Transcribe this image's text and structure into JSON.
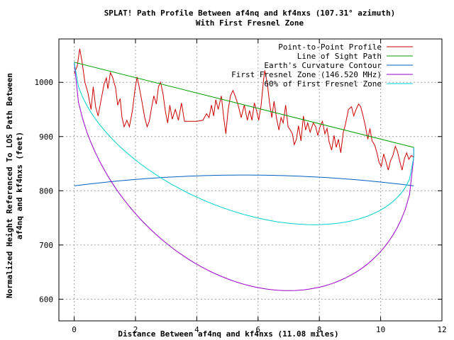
{
  "chart_data": {
    "type": "line",
    "title": "SPLAT! Path Profile Between af4nq and kf4nxs (107.31° azimuth)",
    "subtitle": "With First Fresnel Zone",
    "xlabel": "Distance Between af4nq and kf4nxs (11.08 miles)",
    "ylabel_line1": "Normalized Height Referenced To LOS Path Between",
    "ylabel_line2": "af4nq and kf4nxs (feet)",
    "xlim": [
      -0.5,
      12
    ],
    "ylim": [
      560,
      1080
    ],
    "xticks": [
      0,
      2,
      4,
      6,
      8,
      10,
      12
    ],
    "yticks": [
      600,
      700,
      800,
      900,
      1000
    ],
    "grid": true,
    "legend_position": "top-right",
    "series": [
      {
        "name": "Point-to-Point Profile",
        "color": "#cc0000",
        "points": [
          [
            0.0,
            1016
          ],
          [
            0.1,
            1030
          ],
          [
            0.18,
            1062
          ],
          [
            0.25,
            1040
          ],
          [
            0.35,
            1000
          ],
          [
            0.45,
            980
          ],
          [
            0.55,
            950
          ],
          [
            0.62,
            992
          ],
          [
            0.7,
            955
          ],
          [
            0.78,
            938
          ],
          [
            0.88,
            968
          ],
          [
            0.98,
            998
          ],
          [
            1.05,
            1008
          ],
          [
            1.1,
            988
          ],
          [
            1.18,
            1018
          ],
          [
            1.25,
            1010
          ],
          [
            1.35,
            990
          ],
          [
            1.42,
            958
          ],
          [
            1.5,
            970
          ],
          [
            1.56,
            935
          ],
          [
            1.63,
            918
          ],
          [
            1.72,
            930
          ],
          [
            1.8,
            918
          ],
          [
            1.9,
            948
          ],
          [
            1.98,
            985
          ],
          [
            2.05,
            1010
          ],
          [
            2.12,
            992
          ],
          [
            2.2,
            968
          ],
          [
            2.3,
            935
          ],
          [
            2.38,
            918
          ],
          [
            2.45,
            928
          ],
          [
            2.52,
            952
          ],
          [
            2.6,
            975
          ],
          [
            2.68,
            960
          ],
          [
            2.75,
            992
          ],
          [
            2.82,
            1000
          ],
          [
            2.9,
            978
          ],
          [
            2.98,
            945
          ],
          [
            3.05,
            925
          ],
          [
            3.12,
            958
          ],
          [
            3.2,
            932
          ],
          [
            3.3,
            950
          ],
          [
            3.4,
            930
          ],
          [
            3.5,
            962
          ],
          [
            3.6,
            928
          ],
          [
            3.8,
            928
          ],
          [
            4.0,
            928
          ],
          [
            4.2,
            930
          ],
          [
            4.32,
            942
          ],
          [
            4.4,
            935
          ],
          [
            4.48,
            958
          ],
          [
            4.55,
            938
          ],
          [
            4.62,
            968
          ],
          [
            4.7,
            950
          ],
          [
            4.8,
            975
          ],
          [
            4.88,
            935
          ],
          [
            4.95,
            905
          ],
          [
            5.02,
            948
          ],
          [
            5.1,
            975
          ],
          [
            5.18,
            985
          ],
          [
            5.25,
            975
          ],
          [
            5.35,
            958
          ],
          [
            5.45,
            935
          ],
          [
            5.55,
            958
          ],
          [
            5.65,
            930
          ],
          [
            5.72,
            948
          ],
          [
            5.8,
            930
          ],
          [
            5.88,
            962
          ],
          [
            5.95,
            948
          ],
          [
            6.02,
            930
          ],
          [
            6.1,
            958
          ],
          [
            6.18,
            1005
          ],
          [
            6.22,
            1022
          ],
          [
            6.3,
            998
          ],
          [
            6.38,
            960
          ],
          [
            6.45,
            935
          ],
          [
            6.52,
            965
          ],
          [
            6.6,
            935
          ],
          [
            6.68,
            912
          ],
          [
            6.75,
            935
          ],
          [
            6.82,
            925
          ],
          [
            6.9,
            958
          ],
          [
            6.98,
            918
          ],
          [
            7.05,
            912
          ],
          [
            7.12,
            905
          ],
          [
            7.18,
            885
          ],
          [
            7.25,
            895
          ],
          [
            7.32,
            920
          ],
          [
            7.4,
            892
          ],
          [
            7.48,
            938
          ],
          [
            7.55,
            912
          ],
          [
            7.62,
            925
          ],
          [
            7.7,
            908
          ],
          [
            7.8,
            925
          ],
          [
            7.88,
            918
          ],
          [
            7.95,
            902
          ],
          [
            8.02,
            918
          ],
          [
            8.1,
            928
          ],
          [
            8.18,
            905
          ],
          [
            8.25,
            915
          ],
          [
            8.32,
            890
          ],
          [
            8.4,
            875
          ],
          [
            8.48,
            902
          ],
          [
            8.55,
            880
          ],
          [
            8.62,
            895
          ],
          [
            8.7,
            870
          ],
          [
            8.78,
            908
          ],
          [
            8.85,
            922
          ],
          [
            8.95,
            950
          ],
          [
            9.05,
            955
          ],
          [
            9.12,
            938
          ],
          [
            9.2,
            950
          ],
          [
            9.28,
            960
          ],
          [
            9.35,
            955
          ],
          [
            9.42,
            940
          ],
          [
            9.5,
            920
          ],
          [
            9.58,
            895
          ],
          [
            9.65,
            915
          ],
          [
            9.72,
            892
          ],
          [
            9.8,
            885
          ],
          [
            9.88,
            870
          ],
          [
            9.95,
            852
          ],
          [
            10.02,
            845
          ],
          [
            10.1,
            868
          ],
          [
            10.18,
            852
          ],
          [
            10.25,
            838
          ],
          [
            10.32,
            855
          ],
          [
            10.4,
            865
          ],
          [
            10.48,
            882
          ],
          [
            10.55,
            872
          ],
          [
            10.62,
            855
          ],
          [
            10.7,
            838
          ],
          [
            10.78,
            860
          ],
          [
            10.85,
            870
          ],
          [
            10.92,
            858
          ],
          [
            11.0,
            865
          ],
          [
            11.08,
            862
          ]
        ]
      },
      {
        "name": "Line of Sight Path",
        "color": "#00a000",
        "points": [
          [
            0.0,
            1037
          ],
          [
            11.08,
            880
          ]
        ]
      },
      {
        "name": "Earth's Curvature Contour",
        "color": "#0060c0",
        "curve": "curvature",
        "start": [
          0.0,
          809
        ],
        "end": [
          11.08,
          809
        ],
        "bulge": 20
      },
      {
        "name": "First Fresnel Zone (146.520 MHz)",
        "color": "#9a00c8",
        "curve": "fresnel",
        "fraction": 1.0
      },
      {
        "name": "60% of First Fresnel Zone",
        "color": "#00d0d0",
        "curve": "fresnel",
        "fraction": 0.6
      }
    ],
    "fresnel": {
      "start": [
        0.0,
        1037
      ],
      "end": [
        11.08,
        880
      ],
      "end_height": 862,
      "max_depth": 322
    }
  }
}
